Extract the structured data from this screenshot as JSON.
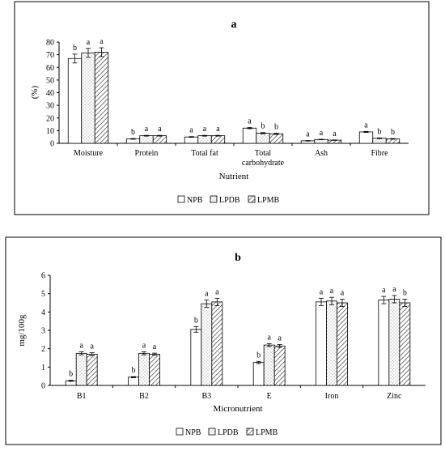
{
  "chart_data": [
    {
      "type": "bar",
      "title": "a",
      "xlabel": "Nutrient",
      "ylabel": "(%)",
      "ylim": [
        0,
        80
      ],
      "yticks": [
        0,
        10,
        20,
        30,
        40,
        50,
        60,
        70,
        80
      ],
      "grid": false,
      "legend_position": "bottom-center",
      "categories": [
        "Moisture",
        "Protein",
        "Total fat",
        "Total carbohydrate",
        "Ash",
        "Fibre"
      ],
      "series": [
        {
          "name": "NPB",
          "pattern": "solid-white",
          "values": [
            67,
            3.5,
            5,
            12,
            2,
            9
          ],
          "errors": [
            3.5,
            0.3,
            0.3,
            0.5,
            0.2,
            0.4
          ],
          "letters": [
            "b",
            "b",
            "a",
            "a",
            "a",
            "a"
          ]
        },
        {
          "name": "LPDB",
          "pattern": "dotted",
          "values": [
            71.5,
            6,
            6,
            8,
            3,
            4
          ],
          "errors": [
            3.5,
            0.3,
            0.3,
            0.5,
            0.2,
            0.3
          ],
          "letters": [
            "a",
            "a",
            "a",
            "b",
            "a",
            "b"
          ]
        },
        {
          "name": "LPMB",
          "pattern": "hatched",
          "values": [
            72,
            6,
            6,
            7.5,
            2.5,
            3.5
          ],
          "errors": [
            3.5,
            0.3,
            0.3,
            0.5,
            0.2,
            0.3
          ],
          "letters": [
            "a",
            "a",
            "a",
            "b",
            "a",
            "b"
          ]
        }
      ]
    },
    {
      "type": "bar",
      "title": "b",
      "xlabel": "Micronutrient",
      "ylabel": "mg/100g",
      "ylim": [
        0,
        6
      ],
      "yticks": [
        0,
        1,
        2,
        3,
        4,
        5,
        6
      ],
      "grid": false,
      "legend_position": "bottom-center",
      "categories": [
        "B1",
        "B2",
        "B3",
        "E",
        "Iron",
        "Zinc"
      ],
      "series": [
        {
          "name": "NPB",
          "pattern": "solid-white",
          "values": [
            0.25,
            0.45,
            3.05,
            1.25,
            4.55,
            4.65
          ],
          "errors": [
            0.03,
            0.03,
            0.15,
            0.06,
            0.2,
            0.2
          ],
          "letters": [
            "b",
            "b",
            "b",
            "b",
            "a",
            "a"
          ]
        },
        {
          "name": "LPDB",
          "pattern": "dotted",
          "values": [
            1.75,
            1.75,
            4.45,
            2.2,
            4.6,
            4.7
          ],
          "errors": [
            0.08,
            0.08,
            0.2,
            0.08,
            0.2,
            0.2
          ],
          "letters": [
            "a",
            "a",
            "a",
            "a",
            "a",
            "a"
          ]
        },
        {
          "name": "LPMB",
          "pattern": "hatched",
          "values": [
            1.7,
            1.7,
            4.55,
            2.15,
            4.5,
            4.5
          ],
          "errors": [
            0.08,
            0.06,
            0.2,
            0.08,
            0.2,
            0.2
          ],
          "letters": [
            "a",
            "a",
            "a",
            "a",
            "a",
            "b"
          ]
        }
      ]
    }
  ]
}
